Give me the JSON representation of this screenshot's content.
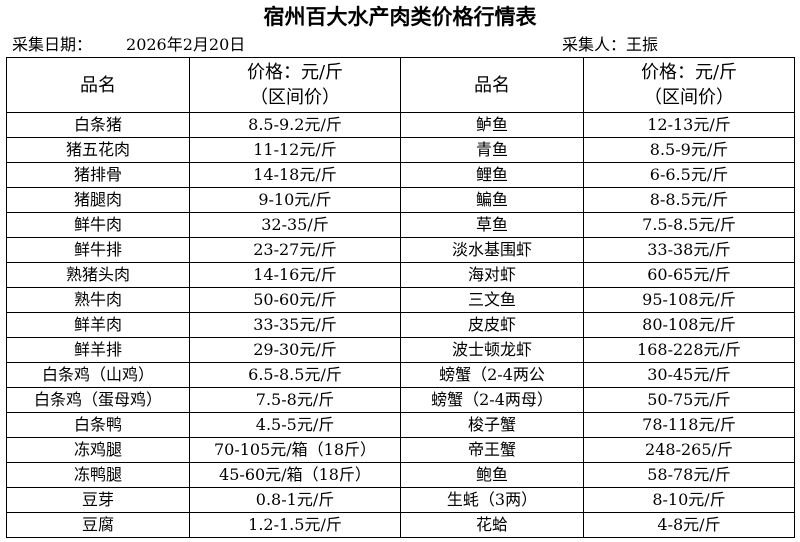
{
  "title": "宿州百大水产肉类价格行情表",
  "date_label": "采集日期：",
  "date_value": "2026年2月20日",
  "collector_label": "采集人：王振",
  "headers": {
    "name": "品名",
    "price_line1": "价格：元/斤",
    "price_line2": "（区间价）"
  },
  "rows": [
    {
      "left_name": "白条猪",
      "left_price": "8.5-9.2元/斤",
      "right_name": "鲈鱼",
      "right_price": "12-13元/斤"
    },
    {
      "left_name": "猪五花肉",
      "left_price": "11-12元/斤",
      "right_name": "青鱼",
      "right_price": "8.5-9元/斤"
    },
    {
      "left_name": "猪排骨",
      "left_price": "14-18元/斤",
      "right_name": "鲤鱼",
      "right_price": "6-6.5元/斤"
    },
    {
      "left_name": "猪腿肉",
      "left_price": "9-10元/斤",
      "right_name": "鳊鱼",
      "right_price": "8-8.5元/斤"
    },
    {
      "left_name": "鲜牛肉",
      "left_price": "32-35/斤",
      "right_name": "草鱼",
      "right_price": "7.5-8.5元/斤"
    },
    {
      "left_name": "鲜牛排",
      "left_price": "23-27元/斤",
      "right_name": "淡水基围虾",
      "right_price": "33-38元/斤"
    },
    {
      "left_name": "熟猪头肉",
      "left_price": "14-16元/斤",
      "right_name": "海对虾",
      "right_price": "60-65元/斤"
    },
    {
      "left_name": "熟牛肉",
      "left_price": "50-60元/斤",
      "right_name": "三文鱼",
      "right_price": "95-108元/斤"
    },
    {
      "left_name": "鲜羊肉",
      "left_price": "33-35元/斤",
      "right_name": "皮皮虾",
      "right_price": "80-108元/斤"
    },
    {
      "left_name": "鲜羊排",
      "left_price": "29-30元/斤",
      "right_name": "波士顿龙虾",
      "right_price": "168-228元/斤"
    },
    {
      "left_name": "白条鸡（山鸡）",
      "left_price": "6.5-8.5元/斤",
      "right_name": "螃蟹（2-4两公",
      "right_price": "30-45元/斤"
    },
    {
      "left_name": "白条鸡（蛋母鸡）",
      "left_price": "7.5-8元/斤",
      "right_name": "螃蟹（2-4两母）",
      "right_price": "50-75元/斤"
    },
    {
      "left_name": "白条鸭",
      "left_price": "4.5-5元/斤",
      "right_name": "梭子蟹",
      "right_price": "78-118元/斤"
    },
    {
      "left_name": "冻鸡腿",
      "left_price": "70-105元/箱（18斤）",
      "right_name": "帝王蟹",
      "right_price": "248-265/斤"
    },
    {
      "left_name": "冻鸭腿",
      "left_price": "45-60元/箱（18斤）",
      "right_name": "鲍鱼",
      "right_price": "58-78元/斤"
    },
    {
      "left_name": "豆芽",
      "left_price": "0.8-1元/斤",
      "right_name": "生蚝（3两）",
      "right_price": "8-10元/斤"
    },
    {
      "left_name": "豆腐",
      "left_price": "1.2-1.5元/斤",
      "right_name": "花蛤",
      "right_price": "4-8元/斤"
    }
  ]
}
